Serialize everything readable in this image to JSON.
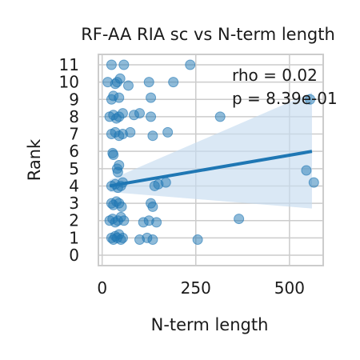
{
  "chart_data": {
    "type": "scatter",
    "title": "RF-AA RIA sc vs N-term length",
    "xlabel": "N-term length",
    "ylabel": "Rank",
    "xlim": [
      -10,
      590
    ],
    "ylim": [
      -0.6,
      11.6
    ],
    "x_ticks": [
      0,
      250,
      500
    ],
    "y_ticks": [
      0,
      1,
      2,
      3,
      4,
      5,
      6,
      7,
      8,
      9,
      10,
      11
    ],
    "grid": true,
    "annotations": [
      "rho = 0.02",
      "p = 8.39e-01"
    ],
    "regression": {
      "x": [
        20,
        560
      ],
      "y": [
        4.0,
        6.0
      ],
      "ci_upper": [
        4.35,
        9.4
      ],
      "ci_lower": [
        3.65,
        2.7
      ]
    },
    "colors": {
      "points": "#1f77b4",
      "line": "#1f77b4",
      "band": "#c6dbef",
      "grid": "#cccccc"
    },
    "points": [
      {
        "x": 25,
        "y": 11
      },
      {
        "x": 58,
        "y": 11
      },
      {
        "x": 235,
        "y": 11
      },
      {
        "x": 15,
        "y": 10
      },
      {
        "x": 40,
        "y": 10
      },
      {
        "x": 48,
        "y": 10.2
      },
      {
        "x": 35,
        "y": 9.9
      },
      {
        "x": 70,
        "y": 9.8
      },
      {
        "x": 125,
        "y": 10
      },
      {
        "x": 190,
        "y": 10
      },
      {
        "x": 25,
        "y": 9
      },
      {
        "x": 30,
        "y": 9.2
      },
      {
        "x": 45,
        "y": 9.1
      },
      {
        "x": 130,
        "y": 9.1
      },
      {
        "x": 555,
        "y": 9
      },
      {
        "x": 20,
        "y": 8
      },
      {
        "x": 30,
        "y": 8.1
      },
      {
        "x": 38,
        "y": 7.9
      },
      {
        "x": 45,
        "y": 8
      },
      {
        "x": 55,
        "y": 8.2
      },
      {
        "x": 85,
        "y": 8.1
      },
      {
        "x": 100,
        "y": 8.2
      },
      {
        "x": 130,
        "y": 8
      },
      {
        "x": 315,
        "y": 8
      },
      {
        "x": 25,
        "y": 7
      },
      {
        "x": 35,
        "y": 7.1
      },
      {
        "x": 45,
        "y": 6.9
      },
      {
        "x": 55,
        "y": 7
      },
      {
        "x": 75,
        "y": 7.1
      },
      {
        "x": 135,
        "y": 6.9
      },
      {
        "x": 175,
        "y": 7.1
      },
      {
        "x": 28,
        "y": 5.9
      },
      {
        "x": 30,
        "y": 5.8
      },
      {
        "x": 40,
        "y": 5
      },
      {
        "x": 42,
        "y": 4.8
      },
      {
        "x": 45,
        "y": 5.2
      },
      {
        "x": 545,
        "y": 4.9
      },
      {
        "x": 25,
        "y": 4
      },
      {
        "x": 35,
        "y": 4.1
      },
      {
        "x": 42,
        "y": 3.9
      },
      {
        "x": 50,
        "y": 4
      },
      {
        "x": 55,
        "y": 4.2
      },
      {
        "x": 140,
        "y": 4
      },
      {
        "x": 150,
        "y": 4.1
      },
      {
        "x": 170,
        "y": 4.2
      },
      {
        "x": 565,
        "y": 4.2
      },
      {
        "x": 25,
        "y": 3
      },
      {
        "x": 30,
        "y": 2.9
      },
      {
        "x": 38,
        "y": 3.1
      },
      {
        "x": 45,
        "y": 3
      },
      {
        "x": 52,
        "y": 2.8
      },
      {
        "x": 130,
        "y": 3
      },
      {
        "x": 135,
        "y": 2.8
      },
      {
        "x": 20,
        "y": 2
      },
      {
        "x": 28,
        "y": 2.1
      },
      {
        "x": 35,
        "y": 1.9
      },
      {
        "x": 42,
        "y": 2
      },
      {
        "x": 50,
        "y": 2.2
      },
      {
        "x": 58,
        "y": 2
      },
      {
        "x": 110,
        "y": 1.9
      },
      {
        "x": 125,
        "y": 2
      },
      {
        "x": 145,
        "y": 1.9
      },
      {
        "x": 365,
        "y": 2.1
      },
      {
        "x": 25,
        "y": 1
      },
      {
        "x": 30,
        "y": 0.9
      },
      {
        "x": 35,
        "y": 1.1
      },
      {
        "x": 40,
        "y": 1
      },
      {
        "x": 45,
        "y": 1.2
      },
      {
        "x": 50,
        "y": 0.9
      },
      {
        "x": 55,
        "y": 1
      },
      {
        "x": 100,
        "y": 0.9
      },
      {
        "x": 120,
        "y": 1
      },
      {
        "x": 135,
        "y": 0.9
      },
      {
        "x": 255,
        "y": 0.9
      }
    ]
  }
}
